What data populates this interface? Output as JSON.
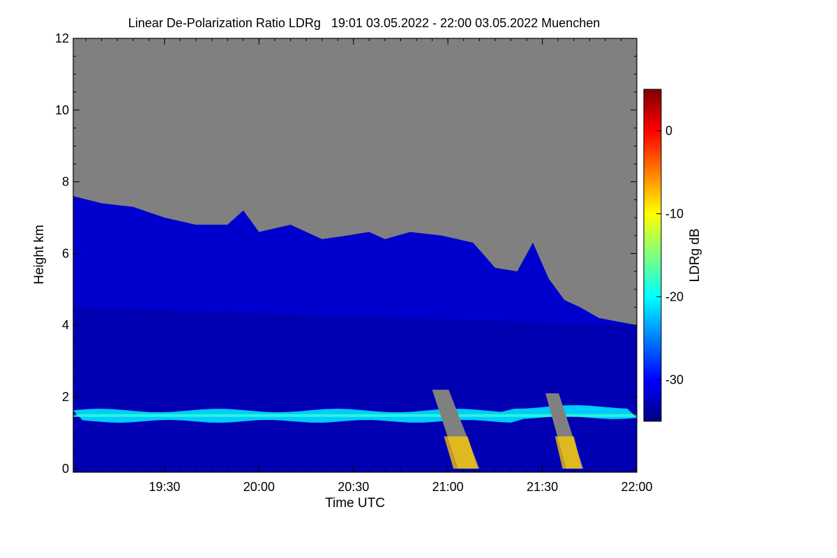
{
  "chart_data": {
    "type": "heatmap",
    "title": "Linear De-Polarization Ratio LDRg   19:01 03.05.2022 - 22:00 03.05.2022 Muenchen",
    "xlabel": "Time UTC",
    "ylabel": "Height km",
    "colorbar_label": "LDRg dB",
    "x_ticks": [
      "19:30",
      "20:00",
      "20:30",
      "21:00",
      "21:30",
      "22:00"
    ],
    "x_tick_minutes": [
      30,
      60,
      90,
      120,
      150,
      180
    ],
    "x_range_minutes": [
      1,
      180
    ],
    "y_ticks": [
      0,
      2,
      4,
      6,
      8,
      10,
      12
    ],
    "ylim": [
      -0.1,
      12
    ],
    "colorbar_ticks": [
      0,
      -10,
      -20,
      -30
    ],
    "colorbar_range": [
      -35,
      5
    ],
    "no_signal_color": "#808080",
    "colormap": [
      "#00007f",
      "#0000ff",
      "#007fff",
      "#00ffff",
      "#7fff7f",
      "#ffff00",
      "#ff7f00",
      "#ff0000",
      "#7f0000"
    ],
    "features": {
      "cloud_top_km": [
        [
          1,
          7.6
        ],
        [
          10,
          7.4
        ],
        [
          20,
          7.3
        ],
        [
          30,
          7.0
        ],
        [
          40,
          6.8
        ],
        [
          50,
          6.8
        ],
        [
          55,
          7.2
        ],
        [
          60,
          6.6
        ],
        [
          70,
          6.8
        ],
        [
          80,
          6.4
        ],
        [
          88,
          6.5
        ],
        [
          95,
          6.6
        ],
        [
          100,
          6.4
        ],
        [
          108,
          6.6
        ],
        [
          118,
          6.5
        ],
        [
          128,
          6.3
        ],
        [
          135,
          5.6
        ],
        [
          142,
          5.5
        ],
        [
          147,
          6.3
        ],
        [
          152,
          5.3
        ],
        [
          157,
          4.7
        ],
        [
          162,
          4.5
        ],
        [
          168,
          4.2
        ],
        [
          174,
          4.1
        ],
        [
          180,
          4.0
        ]
      ],
      "boundary_layer_top_km": 1.5,
      "boundary_layer_ldr_db": -22,
      "background_ldr_db": -33,
      "precipitation_shafts": [
        {
          "t_start": 115,
          "t_end": 130,
          "h_top_km": 2.2,
          "lower_ldr_db": -8
        },
        {
          "t_start": 151,
          "t_end": 163,
          "h_top_km": 2.1,
          "lower_ldr_db": -8
        }
      ]
    }
  }
}
